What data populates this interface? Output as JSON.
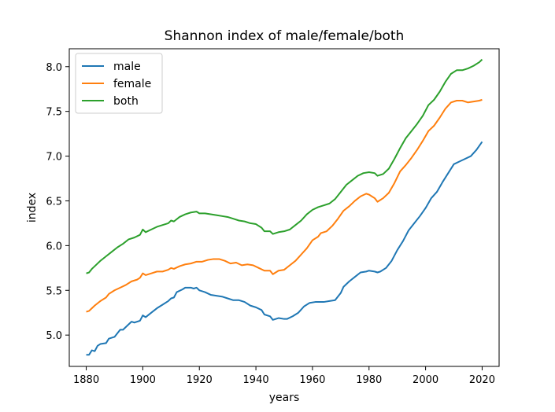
{
  "chart_data": {
    "type": "line",
    "title": "Shannon index of male/female/both",
    "xlabel": "years",
    "ylabel": "index",
    "xlim": [
      1874,
      2026
    ],
    "ylim": [
      4.65,
      8.2
    ],
    "xticks": [
      1880,
      1900,
      1920,
      1940,
      1960,
      1980,
      2000,
      2020
    ],
    "yticks": [
      5.0,
      5.5,
      6.0,
      6.5,
      7.0,
      7.5,
      8.0
    ],
    "xtick_labels": [
      "1880",
      "1900",
      "1920",
      "1940",
      "1960",
      "1980",
      "2000",
      "2020"
    ],
    "ytick_labels": [
      "5.0",
      "5.5",
      "6.0",
      "6.5",
      "7.0",
      "7.5",
      "8.0"
    ],
    "grid": false,
    "legend_position": "top-left",
    "series": [
      {
        "name": "male",
        "color": "#1f77b4",
        "points": [
          [
            1880,
            4.78
          ],
          [
            1881,
            4.78
          ],
          [
            1882,
            4.83
          ],
          [
            1883,
            4.82
          ],
          [
            1884,
            4.88
          ],
          [
            1885,
            4.9
          ],
          [
            1887,
            4.91
          ],
          [
            1888,
            4.96
          ],
          [
            1890,
            4.98
          ],
          [
            1892,
            5.06
          ],
          [
            1893,
            5.06
          ],
          [
            1895,
            5.12
          ],
          [
            1896,
            5.15
          ],
          [
            1897,
            5.14
          ],
          [
            1899,
            5.16
          ],
          [
            1900,
            5.22
          ],
          [
            1901,
            5.2
          ],
          [
            1903,
            5.25
          ],
          [
            1905,
            5.3
          ],
          [
            1907,
            5.34
          ],
          [
            1909,
            5.38
          ],
          [
            1910,
            5.41
          ],
          [
            1911,
            5.42
          ],
          [
            1912,
            5.48
          ],
          [
            1914,
            5.51
          ],
          [
            1915,
            5.53
          ],
          [
            1917,
            5.53
          ],
          [
            1918,
            5.52
          ],
          [
            1919,
            5.53
          ],
          [
            1920,
            5.5
          ],
          [
            1922,
            5.48
          ],
          [
            1924,
            5.45
          ],
          [
            1926,
            5.44
          ],
          [
            1928,
            5.43
          ],
          [
            1930,
            5.41
          ],
          [
            1932,
            5.39
          ],
          [
            1934,
            5.39
          ],
          [
            1936,
            5.37
          ],
          [
            1938,
            5.33
          ],
          [
            1940,
            5.31
          ],
          [
            1942,
            5.28
          ],
          [
            1943,
            5.23
          ],
          [
            1945,
            5.21
          ],
          [
            1946,
            5.17
          ],
          [
            1948,
            5.19
          ],
          [
            1950,
            5.18
          ],
          [
            1951,
            5.18
          ],
          [
            1953,
            5.21
          ],
          [
            1955,
            5.25
          ],
          [
            1957,
            5.32
          ],
          [
            1959,
            5.36
          ],
          [
            1961,
            5.37
          ],
          [
            1963,
            5.37
          ],
          [
            1964,
            5.37
          ],
          [
            1966,
            5.38
          ],
          [
            1968,
            5.39
          ],
          [
            1970,
            5.47
          ],
          [
            1971,
            5.54
          ],
          [
            1973,
            5.6
          ],
          [
            1975,
            5.65
          ],
          [
            1977,
            5.7
          ],
          [
            1979,
            5.71
          ],
          [
            1980,
            5.72
          ],
          [
            1982,
            5.71
          ],
          [
            1983,
            5.7
          ],
          [
            1984,
            5.71
          ],
          [
            1986,
            5.75
          ],
          [
            1988,
            5.83
          ],
          [
            1990,
            5.95
          ],
          [
            1992,
            6.05
          ],
          [
            1994,
            6.17
          ],
          [
            1996,
            6.25
          ],
          [
            1998,
            6.33
          ],
          [
            2000,
            6.42
          ],
          [
            2002,
            6.53
          ],
          [
            2004,
            6.6
          ],
          [
            2006,
            6.71
          ],
          [
            2008,
            6.81
          ],
          [
            2010,
            6.91
          ],
          [
            2012,
            6.94
          ],
          [
            2014,
            6.97
          ],
          [
            2016,
            7.0
          ],
          [
            2018,
            7.07
          ],
          [
            2020,
            7.16
          ]
        ]
      },
      {
        "name": "female",
        "color": "#ff7f0e",
        "points": [
          [
            1880,
            5.26
          ],
          [
            1881,
            5.27
          ],
          [
            1882,
            5.3
          ],
          [
            1883,
            5.33
          ],
          [
            1885,
            5.38
          ],
          [
            1887,
            5.42
          ],
          [
            1888,
            5.46
          ],
          [
            1890,
            5.5
          ],
          [
            1892,
            5.53
          ],
          [
            1894,
            5.56
          ],
          [
            1896,
            5.6
          ],
          [
            1898,
            5.62
          ],
          [
            1899,
            5.64
          ],
          [
            1900,
            5.69
          ],
          [
            1901,
            5.67
          ],
          [
            1903,
            5.69
          ],
          [
            1905,
            5.71
          ],
          [
            1907,
            5.71
          ],
          [
            1909,
            5.73
          ],
          [
            1910,
            5.75
          ],
          [
            1911,
            5.74
          ],
          [
            1913,
            5.77
          ],
          [
            1915,
            5.79
          ],
          [
            1917,
            5.8
          ],
          [
            1919,
            5.82
          ],
          [
            1921,
            5.82
          ],
          [
            1923,
            5.84
          ],
          [
            1925,
            5.85
          ],
          [
            1927,
            5.85
          ],
          [
            1929,
            5.83
          ],
          [
            1931,
            5.8
          ],
          [
            1933,
            5.81
          ],
          [
            1935,
            5.78
          ],
          [
            1937,
            5.79
          ],
          [
            1939,
            5.78
          ],
          [
            1941,
            5.75
          ],
          [
            1943,
            5.72
          ],
          [
            1945,
            5.72
          ],
          [
            1946,
            5.68
          ],
          [
            1948,
            5.72
          ],
          [
            1950,
            5.73
          ],
          [
            1952,
            5.78
          ],
          [
            1954,
            5.83
          ],
          [
            1956,
            5.9
          ],
          [
            1958,
            5.97
          ],
          [
            1960,
            6.06
          ],
          [
            1962,
            6.1
          ],
          [
            1963,
            6.14
          ],
          [
            1965,
            6.16
          ],
          [
            1967,
            6.22
          ],
          [
            1969,
            6.3
          ],
          [
            1971,
            6.39
          ],
          [
            1973,
            6.44
          ],
          [
            1975,
            6.5
          ],
          [
            1977,
            6.55
          ],
          [
            1979,
            6.58
          ],
          [
            1980,
            6.57
          ],
          [
            1982,
            6.53
          ],
          [
            1983,
            6.49
          ],
          [
            1985,
            6.53
          ],
          [
            1987,
            6.59
          ],
          [
            1989,
            6.7
          ],
          [
            1991,
            6.83
          ],
          [
            1993,
            6.9
          ],
          [
            1995,
            6.98
          ],
          [
            1997,
            7.07
          ],
          [
            1999,
            7.17
          ],
          [
            2001,
            7.28
          ],
          [
            2003,
            7.34
          ],
          [
            2005,
            7.43
          ],
          [
            2007,
            7.53
          ],
          [
            2009,
            7.6
          ],
          [
            2011,
            7.62
          ],
          [
            2013,
            7.62
          ],
          [
            2015,
            7.6
          ],
          [
            2017,
            7.61
          ],
          [
            2019,
            7.62
          ],
          [
            2020,
            7.63
          ]
        ]
      },
      {
        "name": "both",
        "color": "#2ca02c",
        "points": [
          [
            1880,
            5.69
          ],
          [
            1881,
            5.7
          ],
          [
            1882,
            5.74
          ],
          [
            1883,
            5.77
          ],
          [
            1885,
            5.83
          ],
          [
            1887,
            5.88
          ],
          [
            1889,
            5.93
          ],
          [
            1891,
            5.98
          ],
          [
            1893,
            6.02
          ],
          [
            1895,
            6.07
          ],
          [
            1897,
            6.09
          ],
          [
            1899,
            6.12
          ],
          [
            1900,
            6.18
          ],
          [
            1901,
            6.15
          ],
          [
            1903,
            6.18
          ],
          [
            1905,
            6.21
          ],
          [
            1907,
            6.23
          ],
          [
            1909,
            6.25
          ],
          [
            1910,
            6.28
          ],
          [
            1911,
            6.27
          ],
          [
            1913,
            6.32
          ],
          [
            1915,
            6.35
          ],
          [
            1917,
            6.37
          ],
          [
            1919,
            6.38
          ],
          [
            1920,
            6.36
          ],
          [
            1922,
            6.36
          ],
          [
            1924,
            6.35
          ],
          [
            1926,
            6.34
          ],
          [
            1928,
            6.33
          ],
          [
            1930,
            6.32
          ],
          [
            1932,
            6.3
          ],
          [
            1934,
            6.28
          ],
          [
            1936,
            6.27
          ],
          [
            1938,
            6.25
          ],
          [
            1940,
            6.24
          ],
          [
            1942,
            6.2
          ],
          [
            1943,
            6.16
          ],
          [
            1945,
            6.16
          ],
          [
            1946,
            6.13
          ],
          [
            1948,
            6.15
          ],
          [
            1950,
            6.16
          ],
          [
            1952,
            6.18
          ],
          [
            1954,
            6.23
          ],
          [
            1956,
            6.28
          ],
          [
            1958,
            6.35
          ],
          [
            1960,
            6.4
          ],
          [
            1962,
            6.43
          ],
          [
            1964,
            6.45
          ],
          [
            1966,
            6.47
          ],
          [
            1968,
            6.52
          ],
          [
            1970,
            6.6
          ],
          [
            1972,
            6.68
          ],
          [
            1974,
            6.73
          ],
          [
            1976,
            6.78
          ],
          [
            1978,
            6.81
          ],
          [
            1980,
            6.82
          ],
          [
            1982,
            6.81
          ],
          [
            1983,
            6.78
          ],
          [
            1985,
            6.8
          ],
          [
            1987,
            6.86
          ],
          [
            1989,
            6.97
          ],
          [
            1991,
            7.09
          ],
          [
            1993,
            7.2
          ],
          [
            1995,
            7.28
          ],
          [
            1997,
            7.36
          ],
          [
            1999,
            7.45
          ],
          [
            2001,
            7.57
          ],
          [
            2003,
            7.63
          ],
          [
            2005,
            7.72
          ],
          [
            2007,
            7.83
          ],
          [
            2009,
            7.92
          ],
          [
            2011,
            7.96
          ],
          [
            2013,
            7.96
          ],
          [
            2015,
            7.98
          ],
          [
            2017,
            8.01
          ],
          [
            2019,
            8.05
          ],
          [
            2020,
            8.08
          ]
        ]
      }
    ]
  }
}
